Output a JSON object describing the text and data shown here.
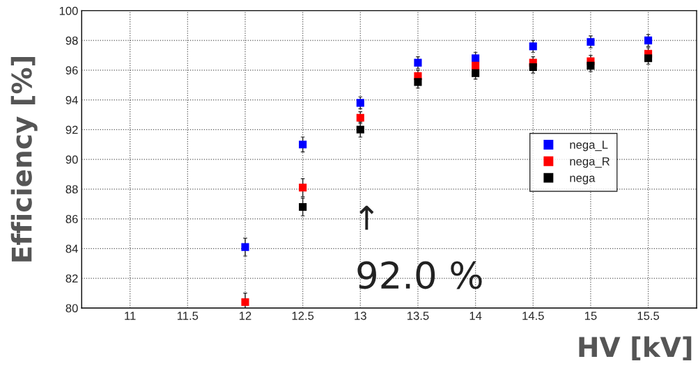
{
  "chart_data": {
    "type": "scatter",
    "xlabel": "HV [kV]",
    "ylabel": "Efficiency [%]",
    "x": [
      12,
      12.5,
      13,
      13.5,
      14,
      14.5,
      15,
      15.5
    ],
    "series": [
      {
        "name": "nega_L",
        "color": "#0000ff",
        "values": [
          84.1,
          91.0,
          93.8,
          96.5,
          96.8,
          97.6,
          97.9,
          98.0
        ],
        "errors": [
          0.6,
          0.5,
          0.4,
          0.4,
          0.4,
          0.4,
          0.4,
          0.4
        ]
      },
      {
        "name": "nega_R",
        "color": "#ff0000",
        "values": [
          80.4,
          88.1,
          92.8,
          95.6,
          96.3,
          96.5,
          96.6,
          97.1
        ],
        "errors": [
          0.6,
          0.6,
          0.4,
          0.4,
          0.4,
          0.4,
          0.4,
          0.4
        ]
      },
      {
        "name": "nega",
        "color": "#000000",
        "values": [
          null,
          86.8,
          92.0,
          95.2,
          95.8,
          96.2,
          96.3,
          96.8
        ],
        "errors": [
          null,
          0.6,
          0.5,
          0.4,
          0.4,
          0.4,
          0.4,
          0.4
        ]
      }
    ],
    "xlim": [
      10.58,
      15.92
    ],
    "xticks": [
      11,
      11.5,
      12,
      12.5,
      13,
      13.5,
      14,
      14.5,
      15,
      15.5
    ],
    "ylim": [
      80,
      100
    ],
    "yticks": [
      80,
      82,
      84,
      86,
      88,
      90,
      92,
      94,
      96,
      98,
      100
    ],
    "grid": true,
    "legend": "right",
    "marker": "square",
    "annotations": [
      "↑",
      "92.0 %"
    ]
  }
}
